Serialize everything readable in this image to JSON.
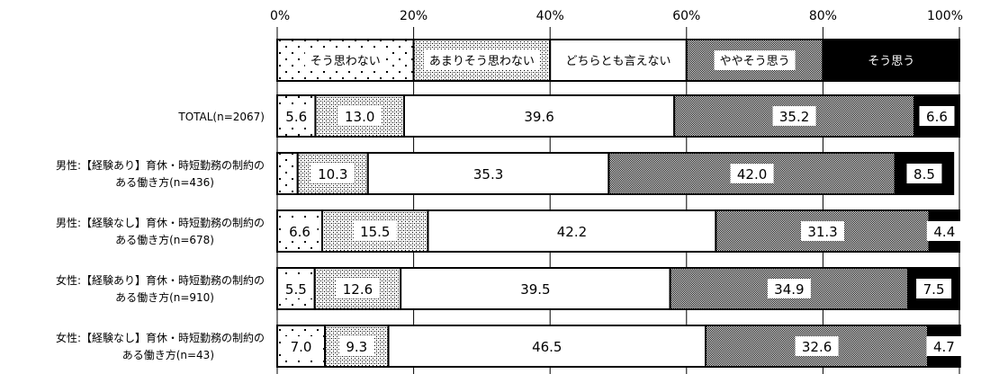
{
  "chart_data": {
    "type": "bar",
    "orientation": "horizontal",
    "stacked": true,
    "percent_axis": true,
    "xlim": [
      0,
      100
    ],
    "ticks": [
      "0%",
      "20%",
      "40%",
      "60%",
      "80%",
      "100%"
    ],
    "legend_placement": "top",
    "categories": [
      [
        "TOTAL(n=2067)"
      ],
      [
        "男性:【経験あり】育休・時短勤務の制約の",
        "ある働き方(n=436)"
      ],
      [
        "男性:【経験なし】育休・時短勤務の制約の",
        "ある働き方(n=678)"
      ],
      [
        "女性:【経験あり】育休・時短勤務の制約の",
        "ある働き方(n=910)"
      ],
      [
        "女性:【経験なし】育休・時短勤務の制約の",
        "ある働き方(n=43)"
      ]
    ],
    "series": [
      {
        "name": "そう思わない",
        "pattern": "dots-sparse",
        "values": [
          5.6,
          3.0,
          6.6,
          5.5,
          7.0
        ],
        "labels": [
          "5.6",
          "",
          "6.6",
          "5.5",
          "7.0"
        ]
      },
      {
        "name": "あまりそう思わない",
        "pattern": "dots-dense",
        "values": [
          13.0,
          10.3,
          15.5,
          12.6,
          9.3
        ],
        "labels": [
          "13.0",
          "10.3",
          "15.5",
          "12.6",
          "9.3"
        ]
      },
      {
        "name": "どちらとも言えない",
        "pattern": "white",
        "values": [
          39.6,
          35.3,
          42.2,
          39.5,
          46.5
        ],
        "labels": [
          "39.6",
          "35.3",
          "42.2",
          "39.5",
          "46.5"
        ]
      },
      {
        "name": "ややそう思う",
        "pattern": "checker",
        "values": [
          35.2,
          42.0,
          31.3,
          34.9,
          32.6
        ],
        "labels": [
          "35.2",
          "42.0",
          "31.3",
          "34.9",
          "32.6"
        ]
      },
      {
        "name": "そう思う",
        "pattern": "black",
        "values": [
          6.6,
          8.5,
          4.4,
          7.5,
          4.7
        ],
        "labels": [
          "6.6",
          "8.5",
          "4.4",
          "7.5",
          "4.7"
        ]
      }
    ]
  }
}
